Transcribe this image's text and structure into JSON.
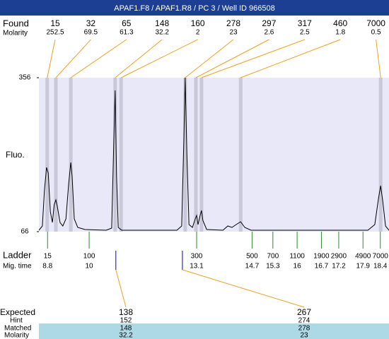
{
  "header": {
    "title": "APAF1.F8 / APAF1.R8 / PC 3 / Well ID 966508"
  },
  "found": {
    "label": "Found",
    "sublabel": "Molarity",
    "sizes": [
      15,
      32,
      65,
      148,
      160,
      278,
      297,
      317,
      460,
      7000
    ],
    "molarity": [
      252.5,
      69.5,
      61.3,
      32.2,
      2,
      23,
      2.6,
      2.5,
      1.8,
      0.5
    ],
    "times": [
      8.79,
      9.04,
      9.47,
      10.75,
      10.92,
      12.77,
      13.08,
      13.24,
      14.37,
      18.41
    ]
  },
  "chart_data": {
    "type": "line",
    "ylabel": "Fluo.",
    "ylim": [
      66,
      356
    ],
    "yticks": [
      66,
      356
    ],
    "xlim": [
      8.55,
      18.65
    ],
    "color": "#000000",
    "background": "#e8e8f8",
    "band_color": "#c8c8d8",
    "x": [
      8.55,
      8.65,
      8.71,
      8.77,
      8.82,
      8.88,
      8.94,
      8.99,
      9.04,
      9.08,
      9.16,
      9.24,
      9.33,
      9.41,
      9.47,
      9.51,
      9.57,
      9.67,
      9.88,
      10.49,
      10.65,
      10.71,
      10.75,
      10.79,
      10.84,
      10.94,
      12.53,
      12.67,
      12.73,
      12.77,
      12.82,
      12.88,
      12.98,
      13.06,
      13.1,
      13.14,
      13.2,
      13.24,
      13.28,
      13.39,
      13.86,
      14.0,
      14.12,
      14.24,
      14.37,
      14.49,
      14.67,
      18.04,
      18.24,
      18.35,
      18.41,
      18.47,
      18.55,
      18.65
    ],
    "values": [
      68.7,
      76.6,
      143.2,
      187.1,
      176.4,
      103.2,
      83.3,
      116.6,
      125.9,
      113.9,
      83.3,
      76.6,
      89.9,
      156.5,
      196.4,
      169.8,
      89.9,
      74.0,
      70.0,
      68.7,
      72.7,
      236.3,
      332.1,
      169.8,
      74.0,
      68.7,
      68.7,
      76.6,
      236.3,
      356,
      209.7,
      79.3,
      74.0,
      89.9,
      96.6,
      79.3,
      96.6,
      105.9,
      87.3,
      70.0,
      68.7,
      76.6,
      74.0,
      79.3,
      84.6,
      74.0,
      68.7,
      68.7,
      79.3,
      129.9,
      152.5,
      123.2,
      76.6,
      68.7
    ]
  },
  "ladder": {
    "label": "Ladder",
    "sublabel": "Mig. time",
    "sizes": [
      15,
      100,
      300,
      500,
      700,
      1100,
      1900,
      2900,
      4900,
      7000
    ],
    "times": [
      8.8,
      10,
      13.1,
      14.7,
      15.3,
      16,
      16.7,
      17.2,
      17.9,
      18.4
    ]
  },
  "expected": {
    "label": "Expected",
    "hint_label": "Hint",
    "matched_label": "Matched",
    "molarity_label": "Molarity",
    "sizes": [
      138,
      267
    ],
    "hint": [
      152,
      274
    ],
    "matched": [
      148,
      278
    ],
    "molarity": [
      32.2,
      23
    ],
    "times": [
      10.77,
      12.69
    ]
  }
}
